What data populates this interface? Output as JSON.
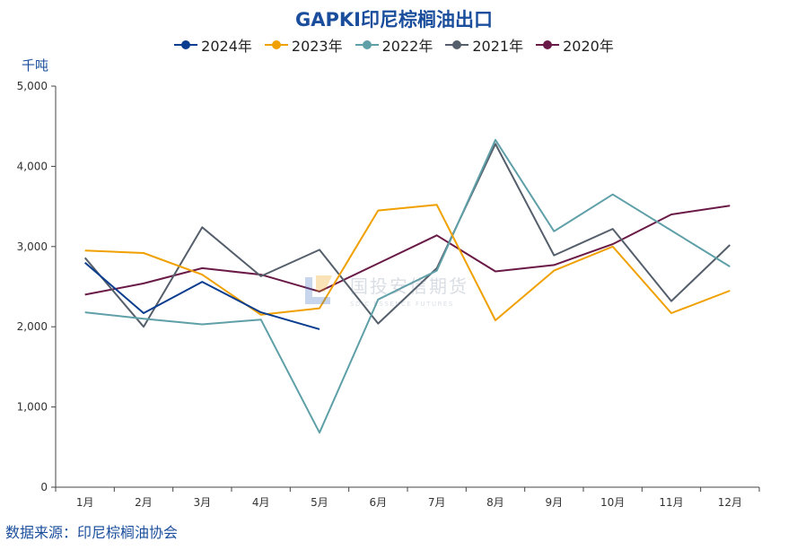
{
  "chart_data": {
    "type": "line",
    "title": "GAPKI印尼棕榈油出口",
    "ylabel": "千吨",
    "ylim": [
      0,
      5000
    ],
    "yticks": [
      "0",
      "1,000",
      "2,000",
      "3,000",
      "4,000",
      "5,000"
    ],
    "categories": [
      "1月",
      "2月",
      "3月",
      "4月",
      "5月",
      "6月",
      "7月",
      "8月",
      "9月",
      "10月",
      "11月",
      "12月"
    ],
    "legend_position": "top-center",
    "grid": false,
    "series": [
      {
        "name": "2024年",
        "color": "#0a3d8f",
        "values": [
          2800,
          2170,
          2560,
          2180,
          1970,
          null,
          null,
          null,
          null,
          null,
          null,
          null
        ]
      },
      {
        "name": "2023年",
        "color": "#f0a000",
        "values": [
          2950,
          2920,
          2650,
          2150,
          2230,
          3450,
          3520,
          2080,
          2700,
          3000,
          2170,
          2450
        ]
      },
      {
        "name": "2022年",
        "color": "#5fa0a8",
        "values": [
          2180,
          2100,
          2030,
          2090,
          680,
          2340,
          2700,
          4330,
          3190,
          3650,
          3200,
          2750
        ]
      },
      {
        "name": "2021年",
        "color": "#555f6b",
        "values": [
          2860,
          2000,
          3240,
          2630,
          2960,
          2040,
          2730,
          4280,
          2890,
          3220,
          2320,
          3020
        ]
      },
      {
        "name": "2020年",
        "color": "#6a1a46",
        "values": [
          2400,
          2540,
          2730,
          2650,
          2440,
          2790,
          3140,
          2690,
          2770,
          3030,
          3400,
          3510
        ]
      }
    ]
  },
  "footer": {
    "source": "数据来源：印尼棕榈油协会"
  },
  "watermark": {
    "text_cn": "国投安信期货",
    "text_en": "SDIC ESSENCE FUTURES"
  }
}
